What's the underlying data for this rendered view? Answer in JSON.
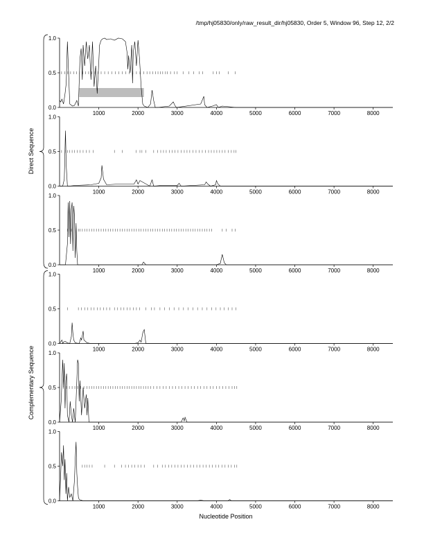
{
  "page": {
    "title": "/tmp/hj05830/only/raw_result_dir/hj05830, Order 5, Window 96, Step 12, 2/2",
    "group_labels": [
      "Direct Sequence",
      "Complementary Sequence"
    ],
    "xlabel": "Nucleotide Position"
  },
  "chart_data": [
    {
      "type": "line",
      "group": "Direct Sequence",
      "panel": 1,
      "xlim": [
        0,
        8500
      ],
      "ylim": [
        0,
        1.0
      ],
      "xticks": [
        1000,
        2000,
        3000,
        4000,
        5000,
        6000,
        7000,
        8000
      ],
      "yticks": [
        0.0,
        0.5,
        1.0
      ],
      "ytick_labels": [
        "0.0",
        "0.5",
        "1.0"
      ],
      "xlabel": "",
      "ylabel": "",
      "shaded_region": {
        "x": [
          500,
          2150
        ],
        "y": [
          0.15,
          0.28
        ]
      },
      "marker_positions": [
        50,
        130,
        210,
        280,
        360,
        430,
        510,
        590,
        660,
        740,
        820,
        900,
        980,
        1060,
        1150,
        1240,
        1330,
        1420,
        1510,
        1600,
        1690,
        1780,
        1870,
        1960,
        2050,
        2150,
        2230,
        2300,
        2380,
        2450,
        2510,
        2570,
        2630,
        2700,
        2750,
        2830,
        2930,
        3000,
        3150,
        3300,
        3420,
        3560,
        3650,
        3920,
        4000,
        4070,
        4300,
        4480
      ],
      "x": [
        0,
        30,
        60,
        100,
        140,
        170,
        200,
        260,
        330,
        380,
        440,
        480,
        520,
        550,
        580,
        600,
        640,
        680,
        720,
        760,
        800,
        840,
        880,
        920,
        960,
        1000,
        1020,
        1060,
        1100,
        1150,
        1200,
        1300,
        1400,
        1500,
        1600,
        1680,
        1720,
        1740,
        1760,
        1800,
        1840,
        1860,
        1880,
        1920,
        1960,
        2000,
        2040,
        2080,
        2120,
        2160,
        2250,
        2320,
        2360,
        2400,
        2440,
        2500,
        2800,
        2900,
        2940,
        2980,
        3600,
        3680,
        3700,
        3760,
        3900,
        4000,
        4050,
        4150,
        4500,
        8500
      ],
      "y": [
        0.1,
        0.08,
        0.12,
        0.05,
        0.2,
        0.35,
        0.95,
        0.05,
        0.02,
        0.03,
        0.1,
        0.02,
        0.7,
        0.85,
        0.4,
        0.9,
        0.6,
        0.95,
        0.7,
        0.9,
        0.4,
        0.95,
        0.3,
        0.6,
        0.2,
        0.65,
        0.9,
        0.97,
        0.99,
        1.0,
        0.98,
        0.99,
        0.97,
        1.0,
        0.99,
        0.95,
        0.8,
        0.55,
        0.75,
        0.5,
        0.9,
        0.35,
        0.8,
        0.95,
        0.6,
        0.97,
        0.7,
        0.3,
        0.05,
        0.02,
        0.0,
        0.05,
        0.25,
        0.1,
        0.0,
        0.0,
        0.02,
        0.08,
        0.03,
        0.0,
        0.05,
        0.16,
        0.04,
        0.0,
        0.02,
        0.04,
        0.0,
        0.02,
        0.0,
        0.0
      ]
    },
    {
      "type": "line",
      "group": "Direct Sequence",
      "panel": 2,
      "xlim": [
        0,
        8500
      ],
      "ylim": [
        0,
        1.0
      ],
      "xticks": [
        1000,
        2000,
        3000,
        4000,
        5000,
        6000,
        7000,
        8000
      ],
      "yticks": [
        0.0,
        0.5,
        1.0
      ],
      "ytick_labels": [
        "0.0",
        "0.5",
        "1.0"
      ],
      "xlabel": "",
      "ylabel": "",
      "marker_positions": [
        50,
        140,
        200,
        260,
        320,
        380,
        450,
        520,
        600,
        680,
        760,
        860,
        1400,
        1600,
        1950,
        2050,
        2100,
        2200,
        2400,
        2500,
        2580,
        2650,
        2720,
        2800,
        2870,
        2940,
        3020,
        3100,
        3180,
        3250,
        3320,
        3400,
        3480,
        3560,
        3640,
        3720,
        3800,
        3870,
        3940,
        4010,
        4080,
        4150,
        4220,
        4300,
        4380,
        4450,
        4500
      ],
      "x": [
        0,
        80,
        120,
        150,
        170,
        200,
        240,
        400,
        800,
        1000,
        1060,
        1080,
        1120,
        1200,
        1500,
        1900,
        1960,
        2000,
        2050,
        2300,
        2360,
        2400,
        2600,
        3000,
        3050,
        3100,
        3700,
        3740,
        3780,
        3850,
        3980,
        4000,
        4040,
        4100,
        8500
      ],
      "y": [
        0.0,
        0.0,
        0.1,
        0.8,
        0.3,
        0.0,
        0.0,
        0.01,
        0.02,
        0.04,
        0.12,
        0.3,
        0.1,
        0.02,
        0.03,
        0.03,
        0.09,
        0.03,
        0.08,
        0.0,
        0.09,
        0.0,
        0.01,
        0.01,
        0.04,
        0.0,
        0.02,
        0.06,
        0.03,
        0.0,
        0.02,
        0.08,
        0.03,
        0.0,
        0.0
      ]
    },
    {
      "type": "line",
      "group": "Direct Sequence",
      "panel": 3,
      "xlim": [
        0,
        8500
      ],
      "ylim": [
        0,
        1.0
      ],
      "xticks": [
        1000,
        2000,
        3000,
        4000,
        5000,
        6000,
        7000,
        8000
      ],
      "yticks": [
        0.0,
        0.5,
        1.0
      ],
      "ytick_labels": [
        "0.0",
        "0.5",
        "1.0"
      ],
      "xlabel": "",
      "ylabel": "",
      "marker_positions": [
        200,
        300,
        420,
        480,
        520,
        580,
        640,
        700,
        760,
        820,
        880,
        940,
        1000,
        1060,
        1120,
        1180,
        1240,
        1300,
        1360,
        1420,
        1480,
        1540,
        1600,
        1660,
        1720,
        1780,
        1840,
        1900,
        1960,
        2020,
        2080,
        2140,
        2200,
        2260,
        2320,
        2380,
        2440,
        2500,
        2560,
        2620,
        2680,
        2740,
        2800,
        2860,
        2920,
        2980,
        3040,
        3100,
        3160,
        3220,
        3280,
        3340,
        3400,
        3460,
        3520,
        3580,
        3640,
        3700,
        3760,
        3820,
        3880,
        4150,
        4250,
        4400,
        4480
      ],
      "x": [
        0,
        150,
        200,
        220,
        240,
        260,
        280,
        300,
        320,
        340,
        360,
        380,
        400,
        420,
        440,
        460,
        500,
        1000,
        2000,
        2100,
        2140,
        2200,
        3000,
        4000,
        4100,
        4150,
        4200,
        4250,
        8500
      ],
      "y": [
        0.0,
        0.0,
        0.3,
        0.9,
        0.4,
        0.92,
        0.3,
        0.8,
        0.9,
        0.2,
        0.85,
        0.7,
        0.1,
        0.6,
        0.2,
        0.0,
        0.0,
        0.0,
        0.0,
        0.0,
        0.04,
        0.0,
        0.0,
        0.0,
        0.02,
        0.15,
        0.03,
        0.0,
        0.0
      ]
    },
    {
      "type": "line",
      "group": "Complementary Sequence",
      "panel": 4,
      "xlim": [
        0,
        8500
      ],
      "ylim": [
        0,
        1.0
      ],
      "xticks": [
        1000,
        2000,
        3000,
        4000,
        5000,
        6000,
        7000,
        8000
      ],
      "yticks": [
        0.0,
        0.5,
        1.0
      ],
      "ytick_labels": [
        "0.0",
        "0.5",
        "1.0"
      ],
      "xlabel": "",
      "ylabel": "",
      "marker_positions": [
        200,
        480,
        560,
        640,
        720,
        800,
        880,
        960,
        1040,
        1120,
        1200,
        1280,
        1400,
        1480,
        1560,
        1640,
        1720,
        1800,
        1880,
        1960,
        2040,
        2200,
        2340,
        2420,
        2560,
        2680,
        2800,
        2920,
        3040,
        3160,
        3280,
        3400,
        3520,
        3640,
        3760,
        3880,
        3990,
        4100,
        4200,
        4300,
        4400,
        4500
      ],
      "x": [
        0,
        60,
        80,
        100,
        140,
        200,
        260,
        300,
        320,
        340,
        360,
        400,
        500,
        540,
        560,
        600,
        620,
        700,
        800,
        1000,
        1900,
        2000,
        2050,
        2080,
        2100,
        2120,
        2140,
        2160,
        2200,
        3000,
        8500
      ],
      "y": [
        0.0,
        0.05,
        0.0,
        0.02,
        0.03,
        0.01,
        0.0,
        0.1,
        0.3,
        0.15,
        0.05,
        0.01,
        0.0,
        0.08,
        0.05,
        0.18,
        0.05,
        0.01,
        0.0,
        0.0,
        0.0,
        0.01,
        0.05,
        0.02,
        0.08,
        0.15,
        0.18,
        0.2,
        0.0,
        0.0,
        0.0
      ]
    },
    {
      "type": "line",
      "group": "Complementary Sequence",
      "panel": 5,
      "xlim": [
        0,
        8500
      ],
      "ylim": [
        0,
        1.0
      ],
      "xticks": [
        1000,
        2000,
        3000,
        4000,
        5000,
        6000,
        7000,
        8000
      ],
      "yticks": [
        0.0,
        0.5,
        1.0
      ],
      "ytick_labels": [
        "0.0",
        "0.5",
        "1.0"
      ],
      "xlabel": "",
      "ylabel": "",
      "marker_positions": [
        100,
        180,
        250,
        320,
        390,
        460,
        540,
        620,
        700,
        760,
        820,
        880,
        940,
        1000,
        1060,
        1120,
        1180,
        1240,
        1300,
        1360,
        1420,
        1480,
        1540,
        1600,
        1660,
        1720,
        1780,
        1840,
        1900,
        1960,
        2020,
        2080,
        2140,
        2200,
        2260,
        2320,
        2400,
        2480,
        2560,
        2640,
        2720,
        2800,
        2880,
        2960,
        3040,
        3120,
        3200,
        3280,
        3360,
        3440,
        3520,
        3600,
        3680,
        3760,
        3840,
        3920,
        4000,
        4080,
        4160,
        4240,
        4320,
        4400,
        4460,
        4520
      ],
      "x": [
        0,
        40,
        60,
        80,
        100,
        120,
        140,
        160,
        180,
        200,
        240,
        270,
        300,
        330,
        360,
        400,
        440,
        460,
        480,
        500,
        520,
        560,
        600,
        640,
        680,
        700,
        720,
        750,
        800,
        1000,
        3100,
        3150,
        3180,
        3200,
        3250,
        3300,
        8500
      ],
      "y": [
        0.0,
        0.3,
        0.6,
        0.9,
        0.5,
        0.85,
        0.2,
        0.6,
        0.7,
        0.1,
        0.0,
        0.3,
        0.1,
        0.0,
        0.2,
        0.0,
        0.6,
        0.9,
        0.85,
        0.3,
        0.6,
        0.1,
        0.5,
        0.2,
        0.4,
        0.1,
        0.35,
        0.0,
        0.0,
        0.0,
        0.0,
        0.06,
        0.02,
        0.07,
        0.0,
        0.0,
        0.0
      ]
    },
    {
      "type": "line",
      "group": "Complementary Sequence",
      "panel": 6,
      "xlim": [
        0,
        8500
      ],
      "ylim": [
        0,
        1.0
      ],
      "xticks": [
        1000,
        2000,
        3000,
        4000,
        5000,
        6000,
        7000,
        8000
      ],
      "yticks": [
        0.0,
        0.5,
        1.0
      ],
      "ytick_labels": [
        "0.0",
        "0.5",
        "1.0"
      ],
      "xlabel": "Nucleotide Position",
      "ylabel": "",
      "marker_positions": [
        580,
        640,
        700,
        760,
        830,
        1150,
        1400,
        1580,
        1680,
        1760,
        1840,
        1920,
        2000,
        2080,
        2160,
        2400,
        2500,
        2620,
        2700,
        2780,
        2860,
        2940,
        3020,
        3100,
        3180,
        3260,
        3340,
        3420,
        3500,
        3580,
        3660,
        3740,
        3820,
        3900,
        3980,
        4060,
        4140,
        4220,
        4300,
        4380,
        4460,
        4520
      ],
      "x": [
        0,
        30,
        50,
        80,
        100,
        120,
        140,
        160,
        180,
        200,
        230,
        260,
        300,
        340,
        380,
        400,
        420,
        440,
        460,
        480,
        500,
        600,
        1000,
        3500,
        3600,
        3700,
        4300,
        4340,
        4380,
        8500
      ],
      "y": [
        0.0,
        0.4,
        0.7,
        0.5,
        0.8,
        0.3,
        0.6,
        0.1,
        0.4,
        0.0,
        0.2,
        0.05,
        0.1,
        0.0,
        0.3,
        0.6,
        0.85,
        0.4,
        0.2,
        0.05,
        0.02,
        0.0,
        0.0,
        0.0,
        0.01,
        0.0,
        0.0,
        0.02,
        0.0,
        0.0
      ]
    }
  ]
}
